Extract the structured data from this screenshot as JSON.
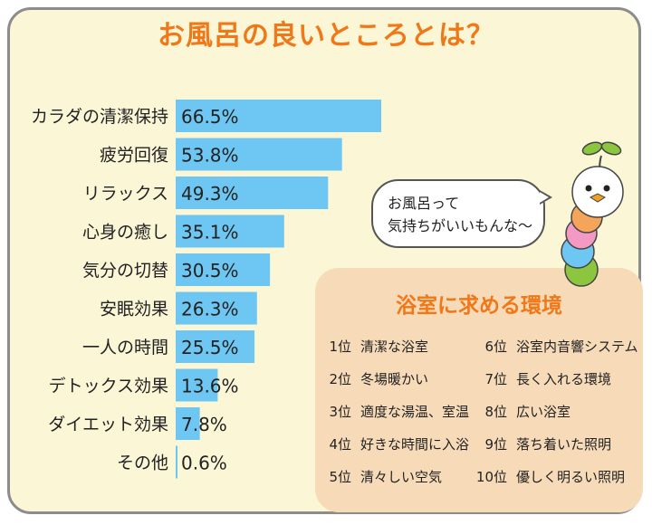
{
  "title": "お風呂の良いところとは？",
  "colors": {
    "title": "#f07818",
    "bar": "#6ec6f2",
    "background": "#fbf6d6",
    "panel": "#f7dbb9"
  },
  "chart_data": {
    "type": "bar",
    "orientation": "horizontal",
    "categories": [
      "カラダの清潔保持",
      "疲労回復",
      "リラックス",
      "心身の癒し",
      "気分の切替",
      "安眠効果",
      "一人の時間",
      "デトックス効果",
      "ダイエット効果",
      "その他"
    ],
    "values": [
      66.5,
      53.8,
      49.3,
      35.1,
      30.5,
      26.3,
      25.5,
      13.6,
      7.8,
      0.6
    ],
    "value_labels": [
      "66.5%",
      "53.8%",
      "49.3%",
      "35.1%",
      "30.5%",
      "26.3%",
      "25.5%",
      "13.6%",
      "7.8%",
      "0.6%"
    ],
    "xlim": [
      0,
      100
    ],
    "grid": false,
    "legend": "none"
  },
  "ranking": {
    "title": "浴室に求める環境",
    "items": [
      {
        "rank": "1位",
        "text": "清潔な浴室"
      },
      {
        "rank": "2位",
        "text": "冬場暖かい"
      },
      {
        "rank": "3位",
        "text": "適度な湯温、室温"
      },
      {
        "rank": "4位",
        "text": "好きな時間に入浴"
      },
      {
        "rank": "5位",
        "text": "清々しい空気"
      },
      {
        "rank": "6位",
        "text": "浴室内音響システム"
      },
      {
        "rank": "7位",
        "text": "長く入れる環境"
      },
      {
        "rank": "8位",
        "text": "広い浴室"
      },
      {
        "rank": "9位",
        "text": "落ち着いた照明"
      },
      {
        "rank": "10位",
        "text": "優しく明るい照明"
      }
    ]
  },
  "bubble": {
    "line1": "お風呂って",
    "line2": "気持ちがいいもんな～"
  },
  "mascot": {
    "icon": "caterpillar-mascot-icon"
  }
}
